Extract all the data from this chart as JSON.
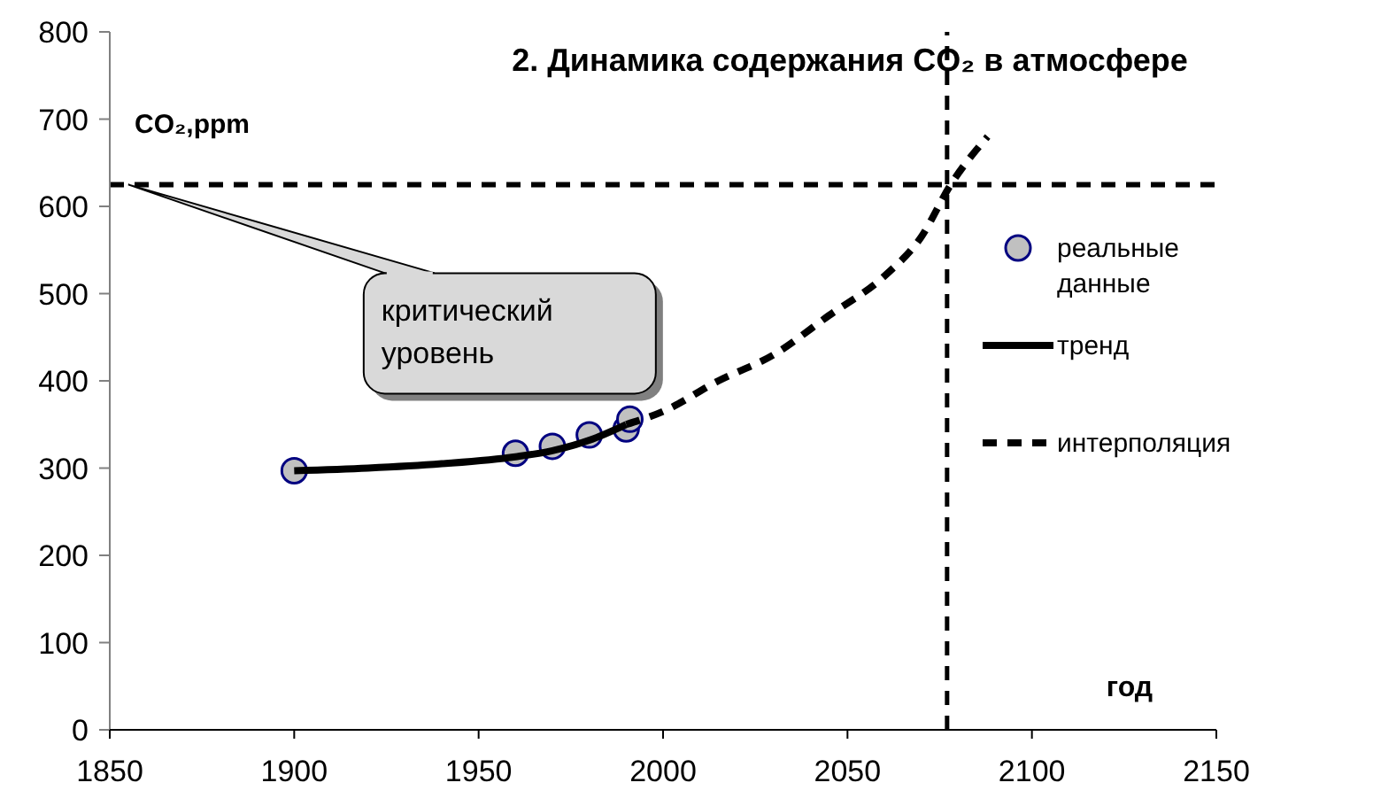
{
  "chart_data": {
    "type": "line",
    "title": "2.  Динамика содержания CO₂ в атмосфере",
    "xlabel": "год",
    "ylabel": "CO₂,ppm",
    "xlim": [
      1850,
      2150
    ],
    "xticks": [
      1850,
      1900,
      1950,
      2000,
      2050,
      2100,
      2150
    ],
    "ylim": [
      0,
      800
    ],
    "yticks": [
      0,
      100,
      200,
      300,
      400,
      500,
      600,
      700,
      800
    ],
    "grid": false,
    "legend": "right",
    "series": [
      {
        "name": "реальные данные",
        "type": "scatter",
        "marker": "circle",
        "color": "#c0c0c0",
        "x": [
          1900,
          1960,
          1970,
          1980,
          1990,
          1991
        ],
        "values": [
          297,
          317,
          325,
          338,
          345,
          356
        ]
      },
      {
        "name": "тренд",
        "line_style": "solid",
        "color": "#000000",
        "x": [
          1900,
          1920,
          1940,
          1960,
          1970,
          1980,
          1990
        ],
        "values": [
          297,
          300,
          305,
          313,
          320,
          332,
          350
        ]
      },
      {
        "name": "интерполяция",
        "line_style": "dashed",
        "color": "#000000",
        "x": [
          1990,
          2000,
          2015,
          2030,
          2045,
          2060,
          2070,
          2078,
          2088
        ],
        "values": [
          350,
          365,
          400,
          430,
          475,
          520,
          565,
          625,
          680
        ]
      }
    ],
    "ref_lines": [
      {
        "axis": "y",
        "value": 625,
        "line_style": "dashed",
        "color": "#000000"
      },
      {
        "axis": "x",
        "value": 2077,
        "line_style": "dashed",
        "color": "#000000"
      }
    ],
    "annotations": [
      {
        "text": "критический уровень",
        "x": 1855,
        "y": 625
      }
    ]
  }
}
